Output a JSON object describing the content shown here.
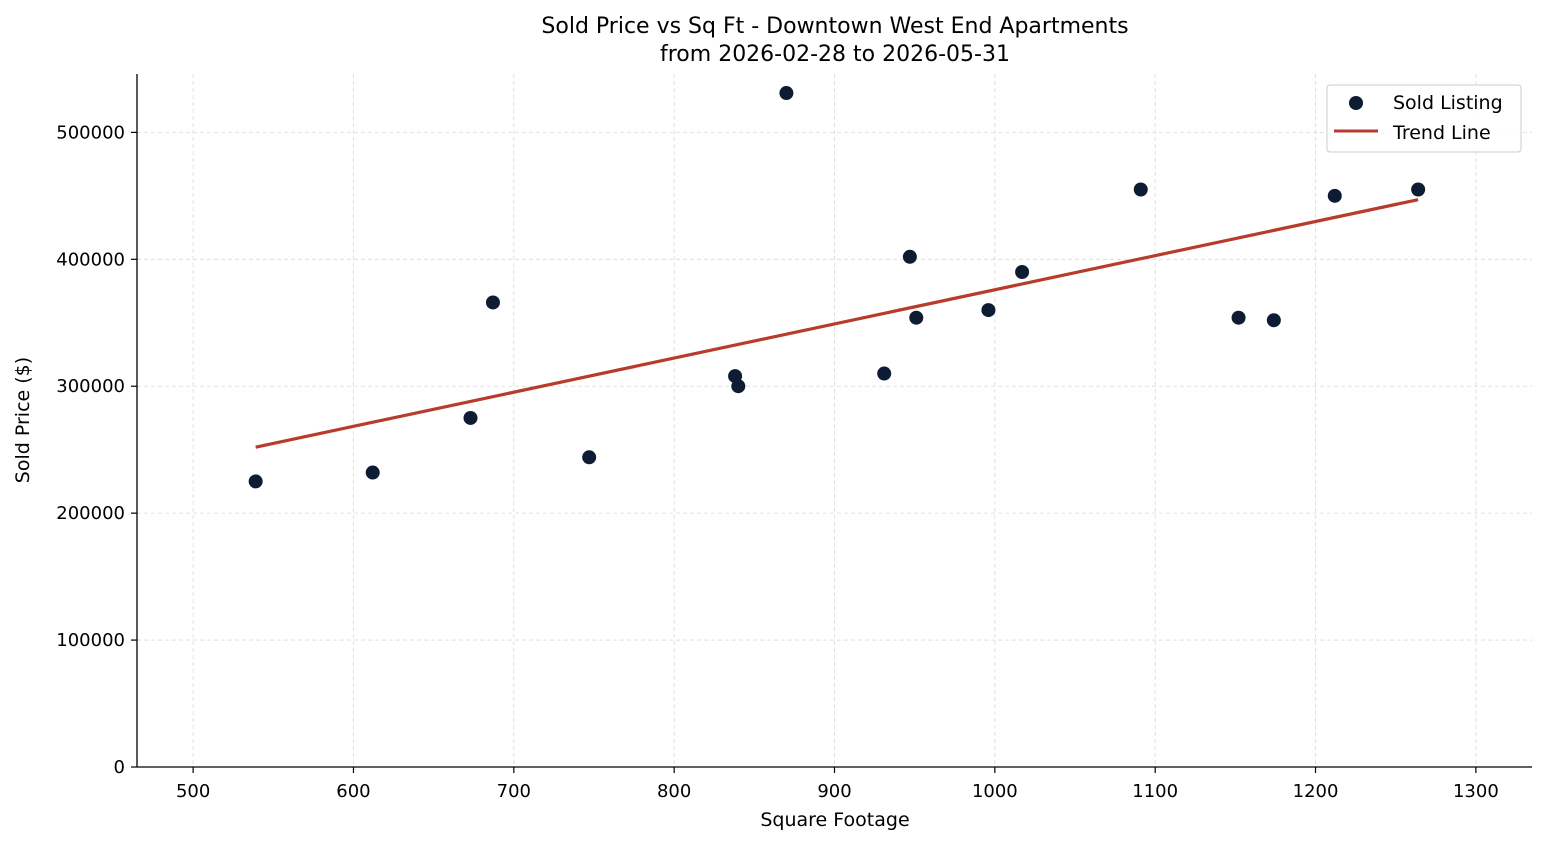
{
  "chart_data": {
    "type": "scatter",
    "title": "Sold Price vs Sq Ft - Downtown West End Apartments",
    "subtitle": "from 2026-02-28 to 2026-05-31",
    "xlabel": "Square Footage",
    "ylabel": "Sold Price ($)",
    "xlim": [
      465,
      1335
    ],
    "ylim": [
      0,
      546000
    ],
    "xticks": [
      500,
      600,
      700,
      800,
      900,
      1000,
      1100,
      1200,
      1300
    ],
    "yticks": [
      0,
      100000,
      200000,
      300000,
      400000,
      500000
    ],
    "grid": true,
    "legend_position": "top-right",
    "series": [
      {
        "name": "Sold Listing",
        "kind": "scatter",
        "color": "#0d1b33",
        "points": [
          {
            "x": 539,
            "y": 225000
          },
          {
            "x": 612,
            "y": 232000
          },
          {
            "x": 673,
            "y": 275000
          },
          {
            "x": 687,
            "y": 366000
          },
          {
            "x": 747,
            "y": 244000
          },
          {
            "x": 838,
            "y": 308000
          },
          {
            "x": 840,
            "y": 300000
          },
          {
            "x": 870,
            "y": 531000
          },
          {
            "x": 931,
            "y": 310000
          },
          {
            "x": 947,
            "y": 402000
          },
          {
            "x": 951,
            "y": 354000
          },
          {
            "x": 996,
            "y": 360000
          },
          {
            "x": 1017,
            "y": 390000
          },
          {
            "x": 1091,
            "y": 455000
          },
          {
            "x": 1152,
            "y": 354000
          },
          {
            "x": 1174,
            "y": 352000
          },
          {
            "x": 1212,
            "y": 450000
          },
          {
            "x": 1264,
            "y": 455000
          }
        ]
      },
      {
        "name": "Trend Line",
        "kind": "line",
        "color": "#b83c2c",
        "points": [
          {
            "x": 539,
            "y": 252000
          },
          {
            "x": 1264,
            "y": 447000
          }
        ]
      }
    ]
  }
}
